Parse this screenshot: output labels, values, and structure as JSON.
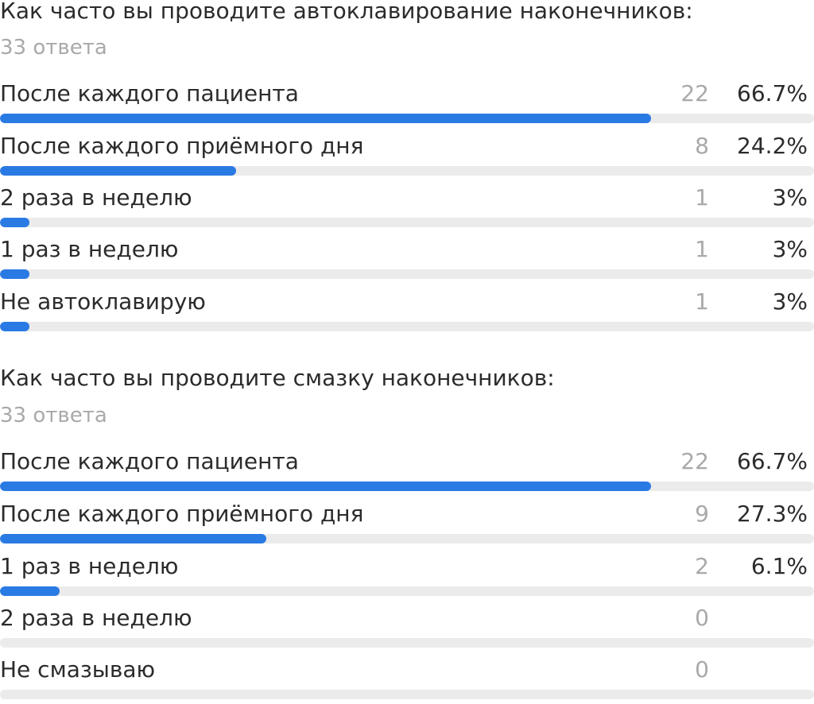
{
  "chart_data": [
    {
      "type": "bar",
      "title": "Как часто вы проводите автоклавирование наконечников:",
      "subtitle": "33 ответа",
      "categories": [
        "После каждого пациента",
        "После каждого приёмного дня",
        "2 раза в неделю",
        "1 раз в неделю",
        "Не автоклавирую"
      ],
      "counts": [
        "22",
        "8",
        "1",
        "1",
        "1"
      ],
      "percents": [
        "66.7%",
        "24.2%",
        "3%",
        "3%",
        "3%"
      ],
      "values": [
        66.7,
        24.2,
        3,
        3,
        3
      ],
      "bar_color": "#2a7ae4",
      "track_color": "#ebebeb"
    },
    {
      "type": "bar",
      "title": "Как часто вы проводите смазку наконечников:",
      "subtitle": "33 ответа",
      "categories": [
        "После каждого пациента",
        "После каждого приёмного дня",
        "1 раз в неделю",
        "2 раза в неделю",
        "Не смазываю"
      ],
      "counts": [
        "22",
        "9",
        "2",
        "0",
        "0"
      ],
      "percents": [
        "66.7%",
        "27.3%",
        "6.1%",
        "",
        ""
      ],
      "values": [
        66.7,
        27.3,
        6.1,
        0,
        0
      ],
      "bar_color": "#2a7ae4",
      "track_color": "#ebebeb"
    }
  ]
}
